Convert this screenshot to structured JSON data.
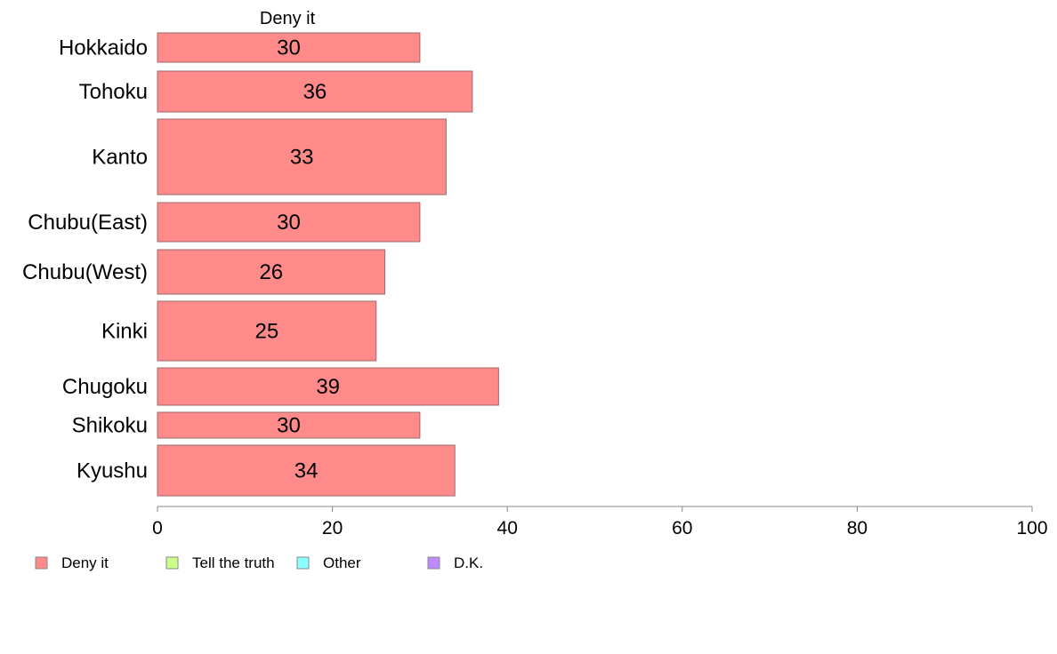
{
  "chart_data": {
    "type": "bar",
    "orientation": "horizontal",
    "stacked": true,
    "panel_title": "Deny it",
    "categories": [
      "Hokkaido",
      "Tohoku",
      "Kanto",
      "Chubu(East)",
      "Chubu(West)",
      "Kinki",
      "Chugoku",
      "Shikoku",
      "Kyushu"
    ],
    "series": [
      {
        "name": "Deny it",
        "color": "#ff8a8a",
        "values": [
          30,
          36,
          33,
          30,
          26,
          25,
          39,
          30,
          34
        ]
      }
    ],
    "legend": [
      {
        "name": "Deny it",
        "color": "#ff8a8a"
      },
      {
        "name": "Tell the truth",
        "color": "#ccff8a"
      },
      {
        "name": "Other",
        "color": "#8affff"
      },
      {
        "name": "D.K.",
        "color": "#bf8aff"
      }
    ],
    "legend_position": "bottom-left",
    "xlim": [
      0,
      100
    ],
    "xticks": [
      0,
      20,
      40,
      60,
      80,
      100
    ],
    "grid": false
  }
}
